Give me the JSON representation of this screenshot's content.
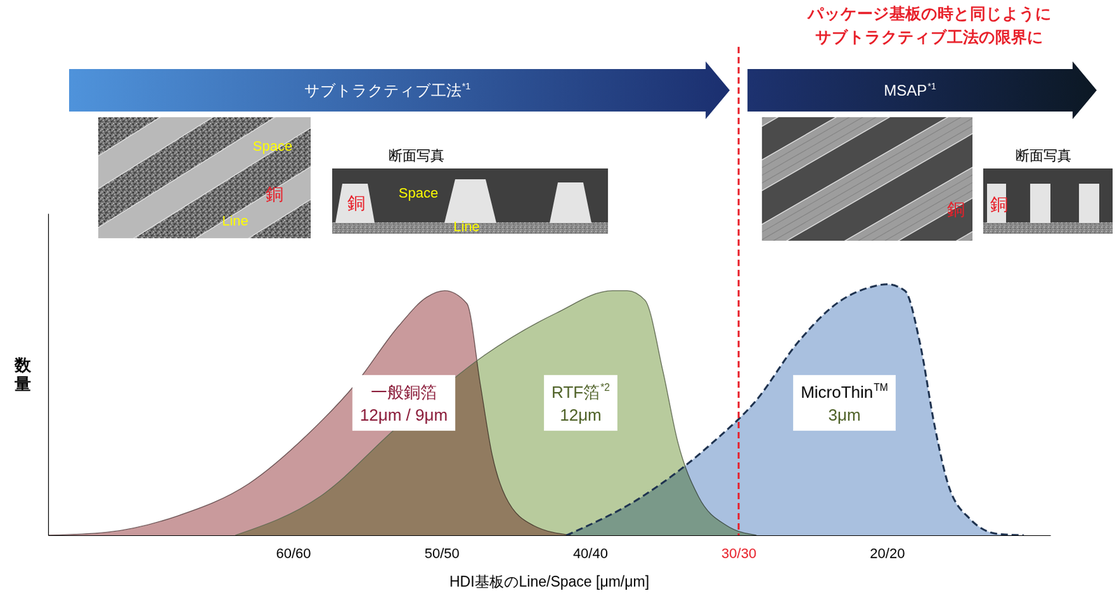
{
  "chart_data": {
    "type": "area",
    "x_label": "HDI基板のLine/Space [μm/μm]",
    "y_label": "数量",
    "xlim": [
      76.5,
      9
    ],
    "xticks": [
      {
        "value": 60,
        "label": "60/60"
      },
      {
        "value": 50,
        "label": "50/50"
      },
      {
        "value": 40,
        "label": "40/40"
      },
      {
        "value": 30,
        "label": "30/30"
      },
      {
        "value": 20,
        "label": "20/20"
      }
    ],
    "ylim": [
      0,
      100
    ],
    "tick_labels": "x",
    "grid": false,
    "series": [
      {
        "name": "一般銅箔",
        "thickness": "12μm / 9μm",
        "color": "#c99a9c",
        "line_style": "solid",
        "x": [
          76.5,
          72.6,
          67.8,
          63.0,
          59.1,
          55.8,
          52.9,
          51.0,
          49.8,
          48.3,
          47.4,
          46.6,
          45.7,
          43.8,
          41.3
        ],
        "values": [
          0,
          0.9,
          6,
          16,
          31,
          47,
          65,
          74,
          76,
          72,
          47,
          25,
          12,
          3,
          0
        ]
      },
      {
        "name": "RTF箔",
        "note": "*2",
        "thickness": "12μm",
        "color": "#b8cb9d",
        "line_style": "solid",
        "x": [
          63.9,
          58.2,
          52.9,
          47.1,
          42.3,
          38.5,
          37.5,
          36.3,
          35.1,
          34.1,
          32.7,
          30.8,
          28.8
        ],
        "values": [
          0,
          12,
          34,
          56,
          69,
          76,
          76,
          73,
          51,
          29,
          12,
          3,
          0
        ]
      },
      {
        "name": "MicroThin",
        "note": "TM",
        "thickness": "3μm",
        "color": "#a9c0df",
        "line_style": "dashed",
        "x": [
          41.6,
          36.5,
          31.7,
          28.8,
          26.0,
          23.1,
          21.2,
          20.0,
          18.8,
          17.8,
          16.8,
          15.9,
          14.4,
          12.5,
          10.8
        ],
        "values": [
          0,
          12,
          29,
          42,
          60,
          73,
          77,
          78,
          76,
          60,
          34,
          16,
          5,
          0.4,
          0
        ]
      }
    ],
    "annotations": [
      {
        "type": "vline",
        "x": 30,
        "color": "#e8202a",
        "line_style": "dashed",
        "text": [
          "パッケージ基板の時と同じように",
          "サブトラクティブ工法の限界に"
        ]
      }
    ],
    "process_arrows": [
      {
        "label": "サブトラクティブ工法",
        "note": "*1",
        "photo_labels": [
          "Space",
          "銅",
          "Line"
        ],
        "section_caption": "断面写真",
        "section_labels": [
          "銅",
          "Space",
          "Line"
        ]
      },
      {
        "label": "MSAP",
        "note": "*1",
        "photo_labels": [
          "銅"
        ],
        "section_caption": "断面写真",
        "section_labels": [
          "銅"
        ]
      }
    ]
  }
}
